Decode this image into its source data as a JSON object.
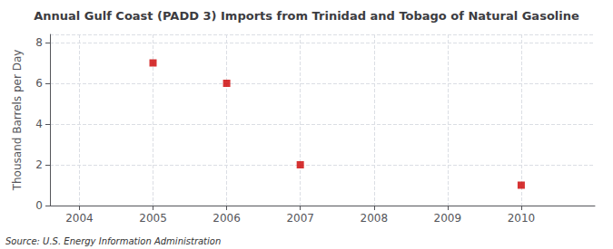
{
  "chart_data": {
    "type": "scatter",
    "title": "Annual Gulf Coast (PADD 3) Imports from Trinidad and Tobago of Natural Gasoline",
    "ylabel": "Thousand Barrels per Day",
    "annotations": [
      "Source: U.S. Energy Information Administration"
    ],
    "x": [
      2005,
      2006,
      2007,
      2010
    ],
    "values": [
      7,
      6,
      2,
      1
    ],
    "color": "#cc0000",
    "marker": "square",
    "xlim": [
      2003.6,
      2011.0
    ],
    "xticks": [
      2004,
      2005,
      2006,
      2007,
      2008,
      2009,
      2010
    ],
    "ylim": [
      0,
      8.4
    ],
    "yticks": [
      0,
      2,
      4,
      6,
      8
    ],
    "grid": true
  }
}
